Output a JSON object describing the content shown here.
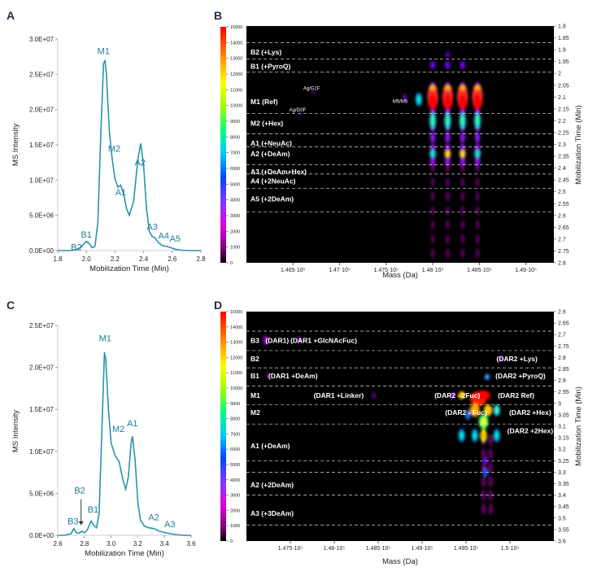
{
  "panels": {
    "A": "A",
    "B": "B",
    "C": "C",
    "D": "D"
  },
  "chart_data": [
    {
      "id": "A",
      "type": "line",
      "xlabel": "Mobilization Time (Min)",
      "ylabel": "MS Intensity",
      "xlim": [
        1.8,
        2.8
      ],
      "ylim": [
        0,
        30000000
      ],
      "xticks": [
        "1.8",
        "2.0",
        "2.2",
        "2.4",
        "2.6",
        "2.8"
      ],
      "yticks": [
        "0.0E+00",
        "5.0E+06",
        "1.0E+07",
        "1.5E+07",
        "2.0E+07",
        "2.5E+07",
        "3.0E+07"
      ],
      "color": "#2b93ad",
      "points": [
        [
          1.8,
          0
        ],
        [
          1.86,
          0
        ],
        [
          1.9,
          30000
        ],
        [
          1.93,
          150000
        ],
        [
          1.96,
          400000
        ],
        [
          1.98,
          900000
        ],
        [
          2.0,
          1300000
        ],
        [
          2.02,
          1000000
        ],
        [
          2.04,
          400000
        ],
        [
          2.06,
          600000
        ],
        [
          2.08,
          4000000
        ],
        [
          2.1,
          16000000
        ],
        [
          2.12,
          26500000
        ],
        [
          2.13,
          27000000
        ],
        [
          2.14,
          25000000
        ],
        [
          2.16,
          17000000
        ],
        [
          2.18,
          13000000
        ],
        [
          2.2,
          10200000
        ],
        [
          2.22,
          9000000
        ],
        [
          2.24,
          9300000
        ],
        [
          2.26,
          8000000
        ],
        [
          2.28,
          6000000
        ],
        [
          2.3,
          5000000
        ],
        [
          2.33,
          7000000
        ],
        [
          2.36,
          13000000
        ],
        [
          2.38,
          15200000
        ],
        [
          2.4,
          12000000
        ],
        [
          2.42,
          6000000
        ],
        [
          2.44,
          2700000
        ],
        [
          2.46,
          2000000
        ],
        [
          2.48,
          1800000
        ],
        [
          2.5,
          1200000
        ],
        [
          2.53,
          700000
        ],
        [
          2.56,
          600000
        ],
        [
          2.59,
          400000
        ],
        [
          2.62,
          200000
        ],
        [
          2.66,
          60000
        ],
        [
          2.72,
          0
        ],
        [
          2.8,
          0
        ]
      ],
      "labels": [
        {
          "text": "B2",
          "x": 1.93,
          "y": -300000
        },
        {
          "text": "B1",
          "x": 2.0,
          "y": 1500000
        },
        {
          "text": "M1",
          "x": 2.12,
          "y": 27500000
        },
        {
          "text": "M2",
          "x": 2.195,
          "y": 13700000
        },
        {
          "text": "A1",
          "x": 2.24,
          "y": 7500000
        },
        {
          "text": "A2",
          "x": 2.375,
          "y": 11700000
        },
        {
          "text": "A3",
          "x": 2.46,
          "y": 2600000
        },
        {
          "text": "A4",
          "x": 2.54,
          "y": 1300000
        },
        {
          "text": "A5",
          "x": 2.62,
          "y": 900000
        }
      ]
    },
    {
      "id": "B",
      "type": "heatmap",
      "xlabel": "Mass (Da)",
      "ylabel": "Mobilization Time (Min)",
      "xlim": [
        146000,
        149300
      ],
      "ylim": [
        1.8,
        2.8
      ],
      "xticks": [
        146500,
        147000,
        147500,
        148000,
        148500,
        149000
      ],
      "xtick_labels": [
        "1.465·10⁵",
        "1.47·10⁵",
        "1.475·10⁵",
        "1.48·10⁵",
        "1.485·10⁵",
        "1.49·10⁵"
      ],
      "yticks": [
        "1.8",
        "1.85",
        "1.9",
        "1.95",
        "2",
        "2.05",
        "2.1",
        "2.15",
        "2.2",
        "2.25",
        "2.3",
        "2.35",
        "2.4",
        "2.45",
        "2.5",
        "2.55",
        "2.6",
        "2.65",
        "2.7",
        "2.75",
        "2.8"
      ],
      "colorbar": {
        "min": 0,
        "max": 15000,
        "ticks": [
          "15000",
          "14000",
          "13000",
          "12000",
          "11000",
          "10000",
          "9000",
          "8000",
          "7000",
          "6000",
          "5000",
          "4000",
          "3000",
          "2000",
          "1000",
          "0"
        ]
      },
      "bands": [
        {
          "label": "B2 (+Lys)",
          "time": 1.91
        },
        {
          "label": "B1 (+PyroQ)",
          "time": 1.97
        },
        {
          "label": "M1 (Ref)",
          "time": 2.12
        },
        {
          "label": "M2 (+Hex)",
          "time": 2.21
        },
        {
          "label": "A1 (+NeuAc)",
          "time": 2.295
        },
        {
          "label": "A2 (+DeAm)",
          "time": 2.34
        },
        {
          "label": "A3 (+DeAm+Hex)",
          "time": 2.415
        },
        {
          "label": "A4 (+2NeuAc)",
          "time": 2.455
        },
        {
          "label": "A5 (+2DeAm)",
          "time": 2.53
        }
      ],
      "dashed_lines": [
        1.87,
        1.94,
        1.995,
        2.17,
        2.255,
        2.31,
        2.385,
        2.425,
        2.485,
        2.585
      ],
      "annotations": [
        {
          "text": "Ag/G1F",
          "mass": 146700,
          "time": 2.06
        },
        {
          "text": "Ag/G0F",
          "mass": 146550,
          "time": 2.15
        },
        {
          "text": "M5/M5",
          "mass": 147650,
          "time": 2.115
        }
      ],
      "species_masses": [
        148000,
        148160,
        148320,
        148480
      ]
    },
    {
      "id": "C",
      "type": "line",
      "xlabel": "Mobilization Time (Min)",
      "ylabel": "MS Intensity",
      "xlim": [
        2.6,
        3.6
      ],
      "ylim": [
        0,
        25000000
      ],
      "xticks": [
        "2.6",
        "2.8",
        "3.0",
        "3.2",
        "3.4",
        "3.6"
      ],
      "yticks": [
        "0.0E+00",
        "5.0E+06",
        "1.0E+07",
        "1.5E+07",
        "2.0E+07",
        "2.5E+07"
      ],
      "color": "#2b93ad",
      "points": [
        [
          2.6,
          0
        ],
        [
          2.65,
          0
        ],
        [
          2.7,
          200000
        ],
        [
          2.72,
          800000
        ],
        [
          2.74,
          300000
        ],
        [
          2.76,
          250000
        ],
        [
          2.78,
          500000
        ],
        [
          2.8,
          300000
        ],
        [
          2.82,
          600000
        ],
        [
          2.85,
          1700000
        ],
        [
          2.87,
          1200000
        ],
        [
          2.89,
          900000
        ],
        [
          2.91,
          2500000
        ],
        [
          2.93,
          12000000
        ],
        [
          2.95,
          21800000
        ],
        [
          2.96,
          21000000
        ],
        [
          2.98,
          15000000
        ],
        [
          3.0,
          11000000
        ],
        [
          3.03,
          9500000
        ],
        [
          3.06,
          8800000
        ],
        [
          3.09,
          6500000
        ],
        [
          3.11,
          5500000
        ],
        [
          3.13,
          7000000
        ],
        [
          3.15,
          11000000
        ],
        [
          3.16,
          11800000
        ],
        [
          3.18,
          9000000
        ],
        [
          3.2,
          4000000
        ],
        [
          3.22,
          1800000
        ],
        [
          3.25,
          1100000
        ],
        [
          3.28,
          900000
        ],
        [
          3.32,
          800000
        ],
        [
          3.36,
          500000
        ],
        [
          3.4,
          350000
        ],
        [
          3.44,
          200000
        ],
        [
          3.5,
          60000
        ],
        [
          3.55,
          0
        ],
        [
          3.6,
          0
        ]
      ],
      "labels": [
        {
          "text": "B3",
          "x": 2.715,
          "y": 1000000
        },
        {
          "text": "B2",
          "x": 2.765,
          "y": 4700000
        },
        {
          "text": "B1",
          "x": 2.865,
          "y": 2400000
        },
        {
          "text": "M1",
          "x": 2.955,
          "y": 22800000
        },
        {
          "text": "M2",
          "x": 3.055,
          "y": 12000000
        },
        {
          "text": "A1",
          "x": 3.16,
          "y": 12700000
        },
        {
          "text": "A2",
          "x": 3.32,
          "y": 1500000
        },
        {
          "text": "A3",
          "x": 3.44,
          "y": 700000
        }
      ],
      "arrow": {
        "x": 2.775,
        "y_from": 4300000,
        "y_to": 1200000
      }
    },
    {
      "id": "D",
      "type": "heatmap",
      "xlabel": "Mass (Da)",
      "ylabel": "Mobilization Time (Min)",
      "xlim": [
        147000,
        150500
      ],
      "ylim": [
        2.6,
        3.6
      ],
      "xticks": [
        147500,
        148000,
        148500,
        149000,
        149500,
        150000
      ],
      "xtick_labels": [
        "1.475·10⁵",
        "1.48·10⁵",
        "1.485·10⁵",
        "1.49·10⁵",
        "1.495·10⁵",
        "1.5·10⁵"
      ],
      "yticks": [
        "2.6",
        "2.65",
        "2.7",
        "2.75",
        "2.8",
        "2.85",
        "2.9",
        "2.95",
        "3",
        "3.05",
        "3.1",
        "3.15",
        "3.2",
        "3.25",
        "3.3",
        "3.35",
        "3.4",
        "3.45",
        "3.5",
        "3.55",
        "3.6"
      ],
      "colorbar": {
        "min": 0,
        "max": 15000,
        "ticks": [
          "15000",
          "14000",
          "13000",
          "12000",
          "11000",
          "10000",
          "9000",
          "8000",
          "7000",
          "6000",
          "5000",
          "4000",
          "3000",
          "2000",
          "1000",
          "0"
        ]
      },
      "bands": [
        {
          "label": "B3",
          "time": 2.725
        },
        {
          "label": "B2",
          "time": 2.805
        },
        {
          "label": "B1",
          "time": 2.88
        },
        {
          "label": "M1",
          "time": 2.965
        },
        {
          "label": "M2",
          "time": 3.04
        },
        {
          "label": "A1 (+DeAm)",
          "time": 3.185
        },
        {
          "label": "A2 (+2DeAm)",
          "time": 3.355
        },
        {
          "label": "A3 (+3DeAm)",
          "time": 3.48
        }
      ],
      "dashed_lines": [
        2.685,
        2.77,
        2.845,
        2.925,
        3.005,
        3.09,
        3.25,
        3.3,
        3.4,
        3.53
      ],
      "annotations": [
        {
          "text": "(DAR1)",
          "mass": 147350,
          "time": 2.725
        },
        {
          "text": "(DAR1 +GlcNAcFuc)",
          "mass": 147880,
          "time": 2.725
        },
        {
          "text": "(DAR1 +DeAm)",
          "mass": 147530,
          "time": 2.88
        },
        {
          "text": "(DAR1 +Linker)",
          "mass": 148050,
          "time": 2.965
        },
        {
          "text": "(DAR2 - 2Fuc)",
          "mass": 149400,
          "time": 2.965
        },
        {
          "text": "(DAR2 - Fuc)",
          "mass": 149500,
          "time": 3.04
        },
        {
          "text": "(DAR2 +Lys)",
          "mass": 150080,
          "time": 2.805
        },
        {
          "text": "(DAR2 +PyroQ)",
          "mass": 150120,
          "time": 2.88
        },
        {
          "text": "(DAR2 Ref)",
          "mass": 150070,
          "time": 2.965
        },
        {
          "text": "(DAR2 +Hex)",
          "mass": 150230,
          "time": 3.04
        },
        {
          "text": "(DAR2 +2Hex)",
          "mass": 150230,
          "time": 3.12
        }
      ],
      "species_masses": [
        149450,
        149600,
        149700,
        149850
      ]
    }
  ]
}
